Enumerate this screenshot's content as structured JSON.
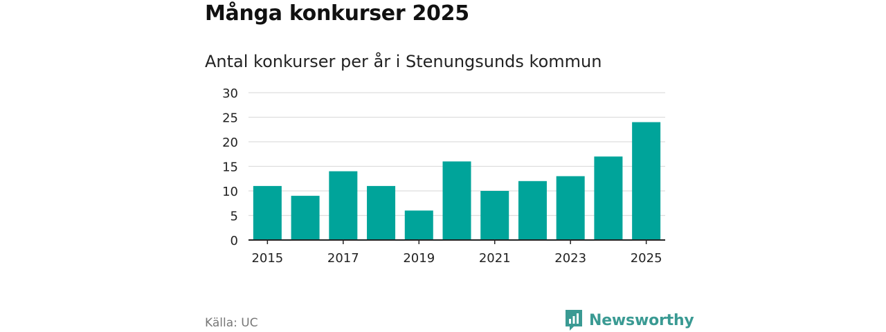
{
  "header": {
    "title": "Många konkurser 2025",
    "subtitle": "Antal konkurser per år i Stenungsunds kommun"
  },
  "footer": {
    "source": "Källa: UC",
    "brand": "Newsworthy"
  },
  "colors": {
    "bar": "#00a49a",
    "brand": "#3a9a93"
  },
  "chart_data": {
    "type": "bar",
    "title": "Antal konkurser per år i Stenungsunds kommun",
    "xlabel": "",
    "ylabel": "",
    "categories": [
      "2015",
      "2016",
      "2017",
      "2018",
      "2019",
      "2020",
      "2021",
      "2022",
      "2023",
      "2024",
      "2025"
    ],
    "values": [
      11,
      9,
      14,
      11,
      6,
      16,
      10,
      12,
      13,
      17,
      24
    ],
    "x_tick_labels": [
      "2015",
      "2017",
      "2019",
      "2021",
      "2023",
      "2025"
    ],
    "y_ticks": [
      0,
      5,
      10,
      15,
      20,
      25,
      30
    ],
    "ylim": [
      0,
      30
    ],
    "grid": true
  }
}
